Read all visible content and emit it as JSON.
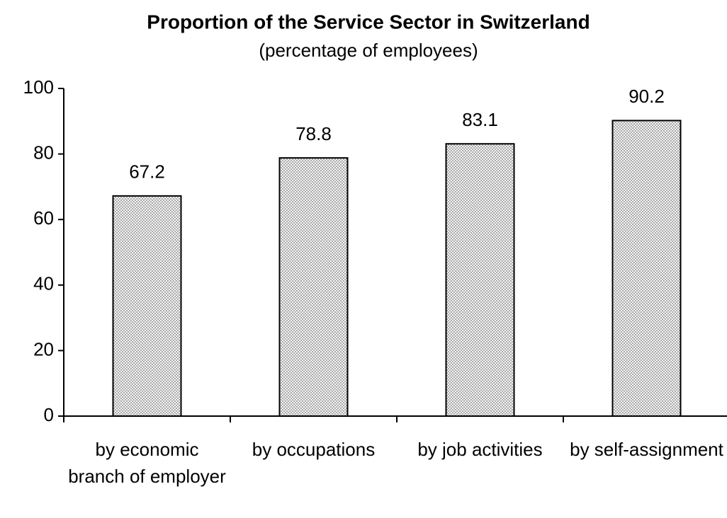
{
  "chart_data": {
    "type": "bar",
    "title": "Proportion of the Service Sector in Switzerland",
    "subtitle": "(percentage of employees)",
    "categories": [
      "by economic branch of employer",
      "by occupations",
      "by job activities",
      "by self-assignment"
    ],
    "values": [
      67.2,
      78.8,
      83.1,
      90.2
    ],
    "ylim": [
      0,
      100
    ],
    "yticks": [
      0,
      20,
      40,
      60,
      80,
      100
    ],
    "grid": false,
    "color": "#d9d9d9"
  }
}
